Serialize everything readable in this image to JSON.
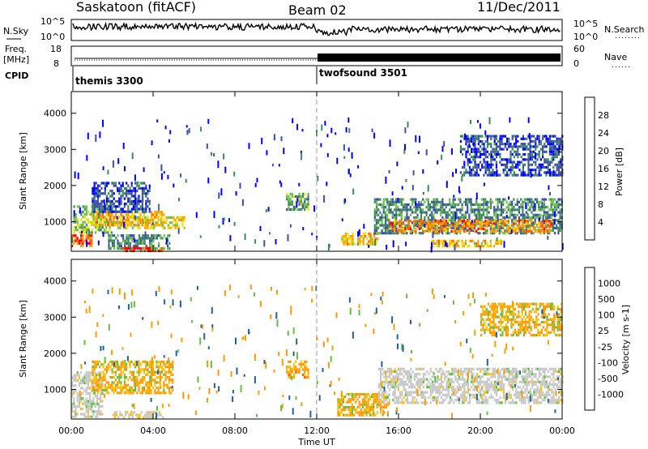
{
  "header": {
    "station": "Saskatoon (fitACF)",
    "beam": "Beam 02",
    "date": "11/Dec/2011"
  },
  "top_panels": {
    "nsky_label": "N.Sky",
    "nsearch_label": "N.Search",
    "noise_ticks_left": [
      "10^5",
      "10^0"
    ],
    "noise_ticks_right": [
      "10^5",
      "10^0"
    ],
    "freq_label_1": "Freq.",
    "freq_label_2": "[MHz]",
    "freq_ticks": [
      "18",
      "8"
    ],
    "nave_label": "Nave",
    "nave_ticks": [
      "60",
      "0"
    ],
    "cpid_label": "CPID",
    "cpid_segments": [
      {
        "name": "themis 3300",
        "start_hour": 0
      },
      {
        "name": "twofsound 3501",
        "start_hour": 12
      }
    ]
  },
  "colors": {
    "power_scale": [
      "#0000ff",
      "#3b4fa8",
      "#3c8c5a",
      "#6bc24a",
      "#f0e000",
      "#ffa000",
      "#ff6000",
      "#ff0000"
    ],
    "velocity_scale": [
      "#ff0000",
      "#ff5a00",
      "#ff9a00",
      "#ffc000",
      "#c8c8c8",
      "#c8c8c8",
      "#60c040",
      "#208040",
      "#2060a0",
      "#0000ff"
    ],
    "cpid_divider": "#999999"
  },
  "chart_data": [
    {
      "type": "heatmap",
      "title": "Power",
      "xlabel": "",
      "ylabel": "Slant Range [km]",
      "xlim": [
        0,
        24
      ],
      "ylim": [
        180,
        4600
      ],
      "yticks": [
        "4000",
        "3000",
        "2000",
        "1000"
      ],
      "colorbar_label": "Power [dB]",
      "colorbar_ticks": [
        "28",
        "24",
        "20",
        "16",
        "12",
        "8",
        "4"
      ],
      "regions": [
        {
          "t0": 0.0,
          "t1": 1.0,
          "r0": 350,
          "r1": 650,
          "value": 26
        },
        {
          "t0": 0.1,
          "t1": 2.0,
          "r0": 700,
          "r1": 1450,
          "value": 14
        },
        {
          "t0": 1.0,
          "t1": 4.5,
          "r0": 900,
          "r1": 1300,
          "value": 22
        },
        {
          "t0": 1.0,
          "t1": 3.8,
          "r0": 1300,
          "r1": 2100,
          "value": 6
        },
        {
          "t0": 2.0,
          "t1": 5.5,
          "r0": 850,
          "r1": 1150,
          "value": 18
        },
        {
          "t0": 1.8,
          "t1": 4.8,
          "r0": 250,
          "r1": 650,
          "value": 10
        },
        {
          "t0": 2.5,
          "t1": 4.5,
          "r0": 180,
          "r1": 300,
          "value": 28
        },
        {
          "t0": 10.5,
          "t1": 11.6,
          "r0": 1300,
          "r1": 1800,
          "value": 12
        },
        {
          "t0": 13.2,
          "t1": 15.0,
          "r0": 350,
          "r1": 700,
          "value": 20
        },
        {
          "t0": 14.8,
          "t1": 24.0,
          "r0": 700,
          "r1": 1650,
          "value": 10
        },
        {
          "t0": 15.5,
          "t1": 23.5,
          "r0": 750,
          "r1": 1050,
          "value": 24
        },
        {
          "t0": 17.5,
          "t1": 21.0,
          "r0": 350,
          "r1": 500,
          "value": 20
        },
        {
          "t0": 19.0,
          "t1": 24.0,
          "r0": 2300,
          "r1": 3400,
          "value": 6
        }
      ]
    },
    {
      "type": "heatmap",
      "title": "Velocity",
      "xlabel": "Time UT",
      "ylabel": "Slant Range [km]",
      "xlim": [
        0,
        24
      ],
      "ylim": [
        180,
        4600
      ],
      "yticks": [
        "4000",
        "3000",
        "2000",
        "1000"
      ],
      "xticks": [
        "00:00",
        "04:00",
        "08:00",
        "12:00",
        "16:00",
        "20:00",
        "00:00"
      ],
      "colorbar_label": "Velocity [m s-1]",
      "colorbar_ticks": [
        "1000",
        "500",
        "100",
        "25",
        "-25",
        "-100",
        "-500",
        "-1000"
      ],
      "regions": [
        {
          "t0": 0.0,
          "t1": 1.5,
          "r0": 250,
          "r1": 1500,
          "value": 0
        },
        {
          "t0": 1.0,
          "t1": 5.0,
          "r0": 900,
          "r1": 1800,
          "value": -150
        },
        {
          "t0": 2.0,
          "t1": 4.5,
          "r0": 200,
          "r1": 400,
          "value": -50
        },
        {
          "t0": 10.5,
          "t1": 11.6,
          "r0": 1300,
          "r1": 1800,
          "value": -200
        },
        {
          "t0": 13.0,
          "t1": 15.5,
          "r0": 300,
          "r1": 900,
          "value": -150
        },
        {
          "t0": 15.0,
          "t1": 24.0,
          "r0": 600,
          "r1": 1600,
          "value": 0
        },
        {
          "t0": 20.0,
          "t1": 24.0,
          "r0": 2500,
          "r1": 3400,
          "value": -150
        }
      ]
    }
  ]
}
